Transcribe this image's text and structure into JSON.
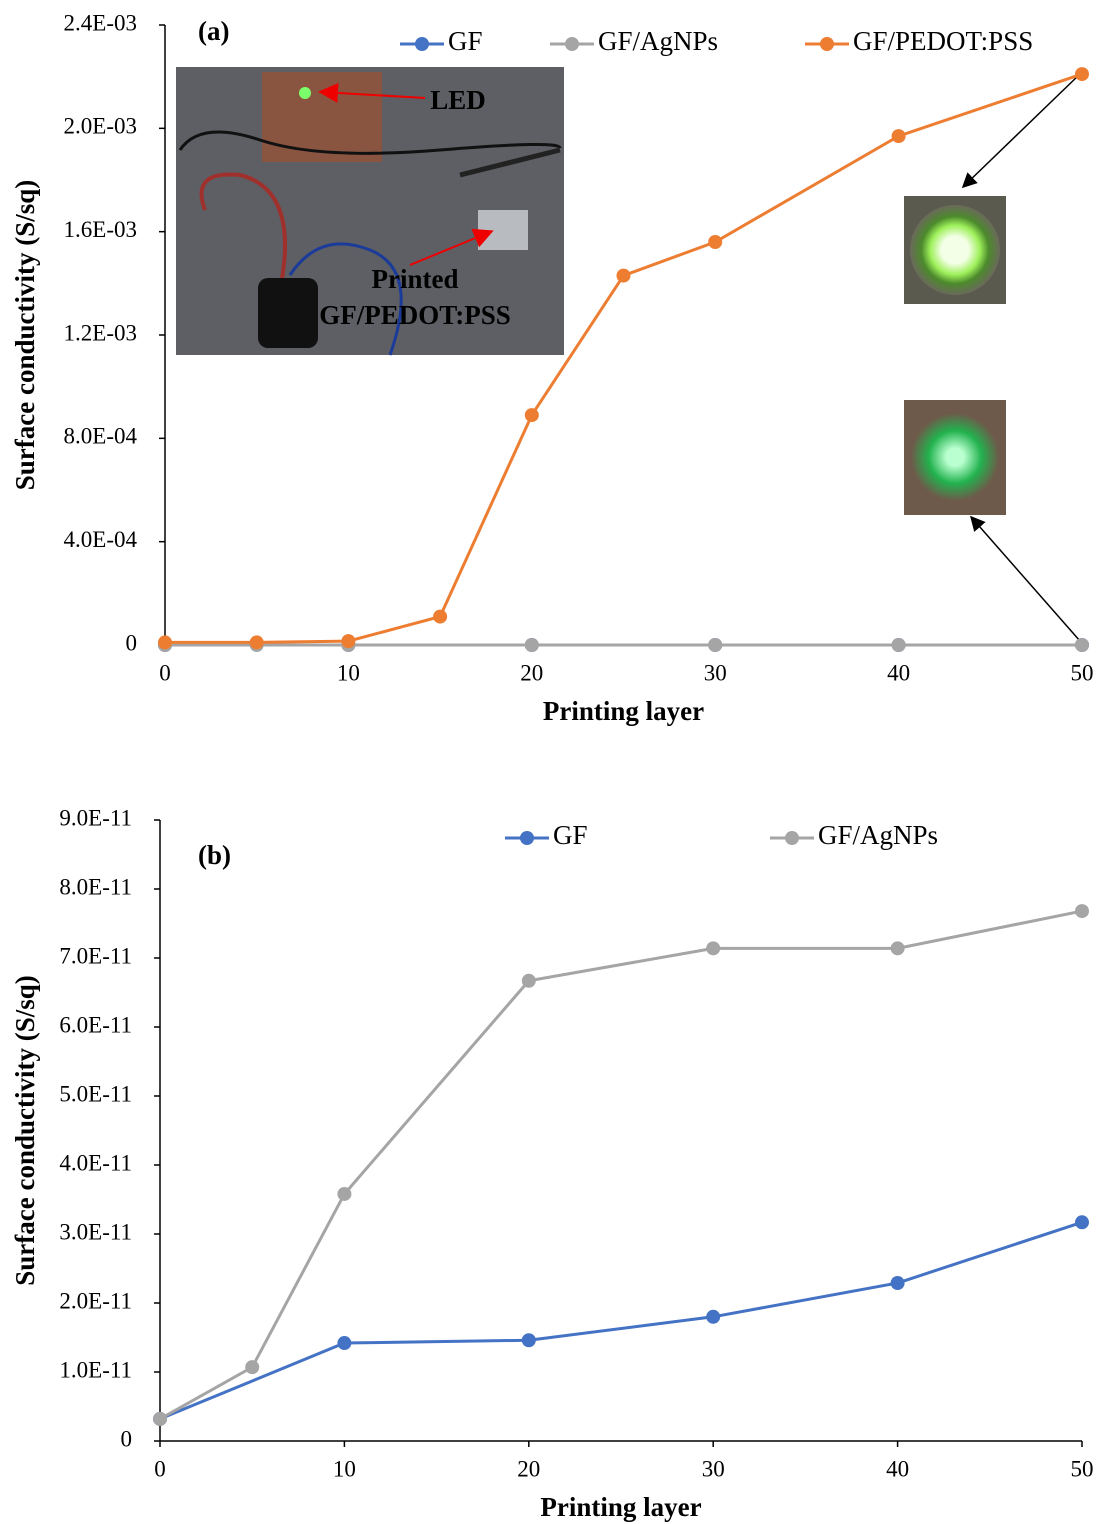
{
  "chart_data": [
    {
      "type": "line",
      "annotations": [
        "(a)",
        "LED",
        "Printed",
        "GF/PEDOT:PSS"
      ],
      "xlabel": "Printing layer",
      "ylabel": "Surface conductivity (S/sq)",
      "xlim": [
        0,
        50
      ],
      "xticks": [
        0,
        10,
        20,
        30,
        40,
        50
      ],
      "ylim": [
        0,
        0.0024
      ],
      "yticks": [
        0,
        {
          "value": 0.0004,
          "label": "4.0E-04"
        },
        {
          "value": 0.0008,
          "label": "8.0E-04"
        },
        {
          "value": 0.0012,
          "label": "1.2E-03"
        },
        {
          "value": 0.0016,
          "label": "1.6E-03"
        },
        {
          "value": 0.002,
          "label": "2.0E-03"
        },
        {
          "value": 0.0024,
          "label": "2.4E-03"
        }
      ],
      "series": [
        {
          "name": "GF",
          "color": "#4472c4",
          "x": [
            0,
            10,
            20,
            30,
            40,
            50
          ],
          "values": [
            3.2e-12,
            1.42e-11,
            1.46e-11,
            1.8e-11,
            2.29e-11,
            3.17e-11
          ]
        },
        {
          "name": "GF/AgNPs",
          "color": "#a5a5a5",
          "x": [
            0,
            5,
            10,
            20,
            30,
            40,
            50
          ],
          "values": [
            3.2e-12,
            1.07e-11,
            3.58e-11,
            6.67e-11,
            7.14e-11,
            7.14e-11,
            7.68e-11
          ]
        },
        {
          "name": "GF/PEDOT:PSS",
          "color": "#ed7d31",
          "x": [
            0,
            5,
            10,
            15,
            20,
            25,
            30,
            40,
            50
          ],
          "values": [
            1e-05,
            1e-05,
            1.5e-05,
            0.00011,
            0.00089,
            0.00143,
            0.00156,
            0.00197,
            0.00221
          ]
        }
      ]
    },
    {
      "type": "line",
      "annotations": [
        "(b)"
      ],
      "xlabel": "Printing layer",
      "ylabel": "Surface conductivity (S/sq)",
      "xlim": [
        0,
        50
      ],
      "xticks": [
        0,
        10,
        20,
        30,
        40,
        50
      ],
      "ylim": [
        0,
        9e-11
      ],
      "yticks": [
        0,
        {
          "value": 1e-11,
          "label": "1.0E-11"
        },
        {
          "value": 2e-11,
          "label": "2.0E-11"
        },
        {
          "value": 3e-11,
          "label": "3.0E-11"
        },
        {
          "value": 4e-11,
          "label": "4.0E-11"
        },
        {
          "value": 5e-11,
          "label": "5.0E-11"
        },
        {
          "value": 6e-11,
          "label": "6.0E-11"
        },
        {
          "value": 7e-11,
          "label": "7.0E-11"
        },
        {
          "value": 8e-11,
          "label": "8.0E-11"
        },
        {
          "value": 9e-11,
          "label": "9.0E-11"
        }
      ],
      "series": [
        {
          "name": "GF",
          "color": "#4472c4",
          "x": [
            0,
            10,
            20,
            30,
            40,
            50
          ],
          "values": [
            3.2e-12,
            1.42e-11,
            1.46e-11,
            1.8e-11,
            2.29e-11,
            3.17e-11
          ]
        },
        {
          "name": "GF/AgNPs",
          "color": "#a5a5a5",
          "x": [
            0,
            5,
            10,
            20,
            30,
            40,
            50
          ],
          "values": [
            3.2e-12,
            1.07e-11,
            3.58e-11,
            6.67e-11,
            7.14e-11,
            7.14e-11,
            7.68e-11
          ]
        }
      ]
    }
  ]
}
